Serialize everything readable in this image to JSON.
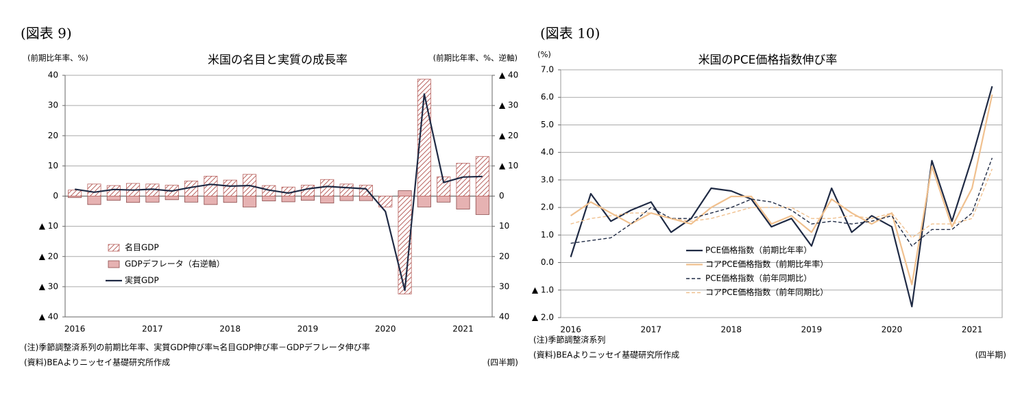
{
  "chart_data": [
    {
      "type": "bar",
      "figure_label": "(図表 9)",
      "title": "米国の名目と実質の成長率",
      "ylabel": "(前期比年率、%)",
      "y2label": "(前期比年率、%、逆軸)",
      "x_unit": "(四半期)",
      "notes": [
        "(注)季節調整済系列の前期比年率、実質GDP伸び率≒名目GDP伸び率－GDPデフレータ伸び率",
        "(資料)BEAよりニッセイ基礎研究所作成"
      ],
      "categories": [
        "2016",
        null,
        null,
        null,
        "2017",
        null,
        null,
        null,
        "2018",
        null,
        null,
        null,
        "2019",
        null,
        null,
        null,
        "2020",
        null,
        null,
        null,
        "2021",
        null
      ],
      "ylim": [
        -40,
        40
      ],
      "yticks": [
        {
          "value": -40,
          "label": "▲ 40"
        },
        {
          "value": -30,
          "label": "▲ 30"
        },
        {
          "value": -20,
          "label": "▲ 20"
        },
        {
          "value": -10,
          "label": "▲ 10"
        },
        0,
        10,
        20,
        30,
        40
      ],
      "y2lim": [
        -40,
        40
      ],
      "y2_reversed": true,
      "y2ticks": [
        {
          "value": -40,
          "label": "▲ 40"
        },
        {
          "value": -30,
          "label": "▲ 30"
        },
        {
          "value": -20,
          "label": "▲ 20"
        },
        {
          "value": -10,
          "label": "▲ 10"
        },
        0,
        10,
        20,
        30,
        40
      ],
      "grid": true,
      "legend": "lower left",
      "series": [
        {
          "name": "GDPデフレータ（右逆軸）",
          "type": "bar",
          "axis": "y2",
          "color": "#e6b2b2",
          "values": [
            0.5,
            2.8,
            1.4,
            2.1,
            2.0,
            1.2,
            2.0,
            2.8,
            2.1,
            3.6,
            1.6,
            1.9,
            1.4,
            2.3,
            1.5,
            1.5,
            1.6,
            -1.8,
            3.6,
            2.0,
            4.3,
            6.1
          ]
        },
        {
          "name": "名目GDP",
          "type": "bar",
          "hatch": true,
          "color": "#b8625e",
          "values": [
            2.0,
            4.0,
            3.5,
            4.2,
            4.0,
            3.6,
            5.0,
            6.6,
            5.3,
            7.2,
            3.5,
            3.0,
            3.6,
            5.5,
            4.0,
            3.6,
            -3.6,
            -32.4,
            38.7,
            6.4,
            10.9,
            13.1
          ]
        },
        {
          "name": "実質GDP",
          "type": "line",
          "color": "#1f2a44",
          "values": [
            2.3,
            1.3,
            2.2,
            2.0,
            2.3,
            1.7,
            2.9,
            3.9,
            3.3,
            3.5,
            2.0,
            1.0,
            2.4,
            3.2,
            2.8,
            2.4,
            -5.1,
            -31.2,
            33.8,
            4.5,
            6.3,
            6.5
          ]
        }
      ]
    },
    {
      "type": "line",
      "figure_label": "(図表 10)",
      "title": "米国のPCE価格指数伸び率",
      "ylabel": "(%)",
      "x_unit": "(四半期)",
      "notes": [
        "(注)季節調整済系列",
        "(資料)BEAよりニッセイ基礎研究所作成"
      ],
      "categories": [
        "2016",
        null,
        null,
        null,
        "2017",
        null,
        null,
        null,
        "2018",
        null,
        null,
        null,
        "2019",
        null,
        null,
        null,
        "2020",
        null,
        null,
        null,
        "2021",
        null
      ],
      "ylim": [
        -2,
        7
      ],
      "yticks": [
        {
          "value": -2,
          "label": "▲ 2.0"
        },
        {
          "value": -1,
          "label": "▲ 1.0"
        },
        {
          "value": 0,
          "label": "0.0"
        },
        {
          "value": 1,
          "label": "1.0"
        },
        {
          "value": 2,
          "label": "2.0"
        },
        {
          "value": 3,
          "label": "3.0"
        },
        {
          "value": 4,
          "label": "4.0"
        },
        {
          "value": 5,
          "label": "5.0"
        },
        {
          "value": 6,
          "label": "6.0"
        },
        {
          "value": 7,
          "label": "7.0"
        }
      ],
      "grid": true,
      "legend": "lower center",
      "series": [
        {
          "name": "PCE価格指数（前期比年率）",
          "color": "#1f2a44",
          "dashed": false,
          "values": [
            0.2,
            2.5,
            1.5,
            1.9,
            2.2,
            1.1,
            1.6,
            2.7,
            2.6,
            2.3,
            1.3,
            1.6,
            0.6,
            2.7,
            1.1,
            1.7,
            1.3,
            -1.6,
            3.7,
            1.5,
            3.8,
            6.4
          ]
        },
        {
          "name": "コアPCE価格指数（前期比年率）",
          "color": "#f0c08e",
          "dashed": false,
          "values": [
            1.7,
            2.2,
            1.8,
            1.4,
            1.8,
            1.6,
            1.4,
            2.0,
            2.4,
            2.4,
            1.4,
            1.7,
            1.1,
            2.3,
            1.8,
            1.4,
            1.8,
            -0.8,
            3.5,
            1.3,
            2.7,
            6.1
          ]
        },
        {
          "name": "PCE価格指数（前年同期比）",
          "color": "#1f2a44",
          "dashed": true,
          "values": [
            0.7,
            0.8,
            0.9,
            1.4,
            2.0,
            1.6,
            1.6,
            1.8,
            2.0,
            2.3,
            2.2,
            1.9,
            1.4,
            1.5,
            1.4,
            1.5,
            1.7,
            0.6,
            1.2,
            1.2,
            1.8,
            3.8
          ]
        },
        {
          "name": "コアPCE価格指数（前年同期比）",
          "color": "#f0c08e",
          "dashed": true,
          "values": [
            1.4,
            1.6,
            1.7,
            1.8,
            1.8,
            1.6,
            1.5,
            1.6,
            1.8,
            2.0,
            2.0,
            2.0,
            1.6,
            1.6,
            1.7,
            1.6,
            1.8,
            0.9,
            1.4,
            1.4,
            1.6,
            3.4
          ]
        }
      ]
    }
  ]
}
